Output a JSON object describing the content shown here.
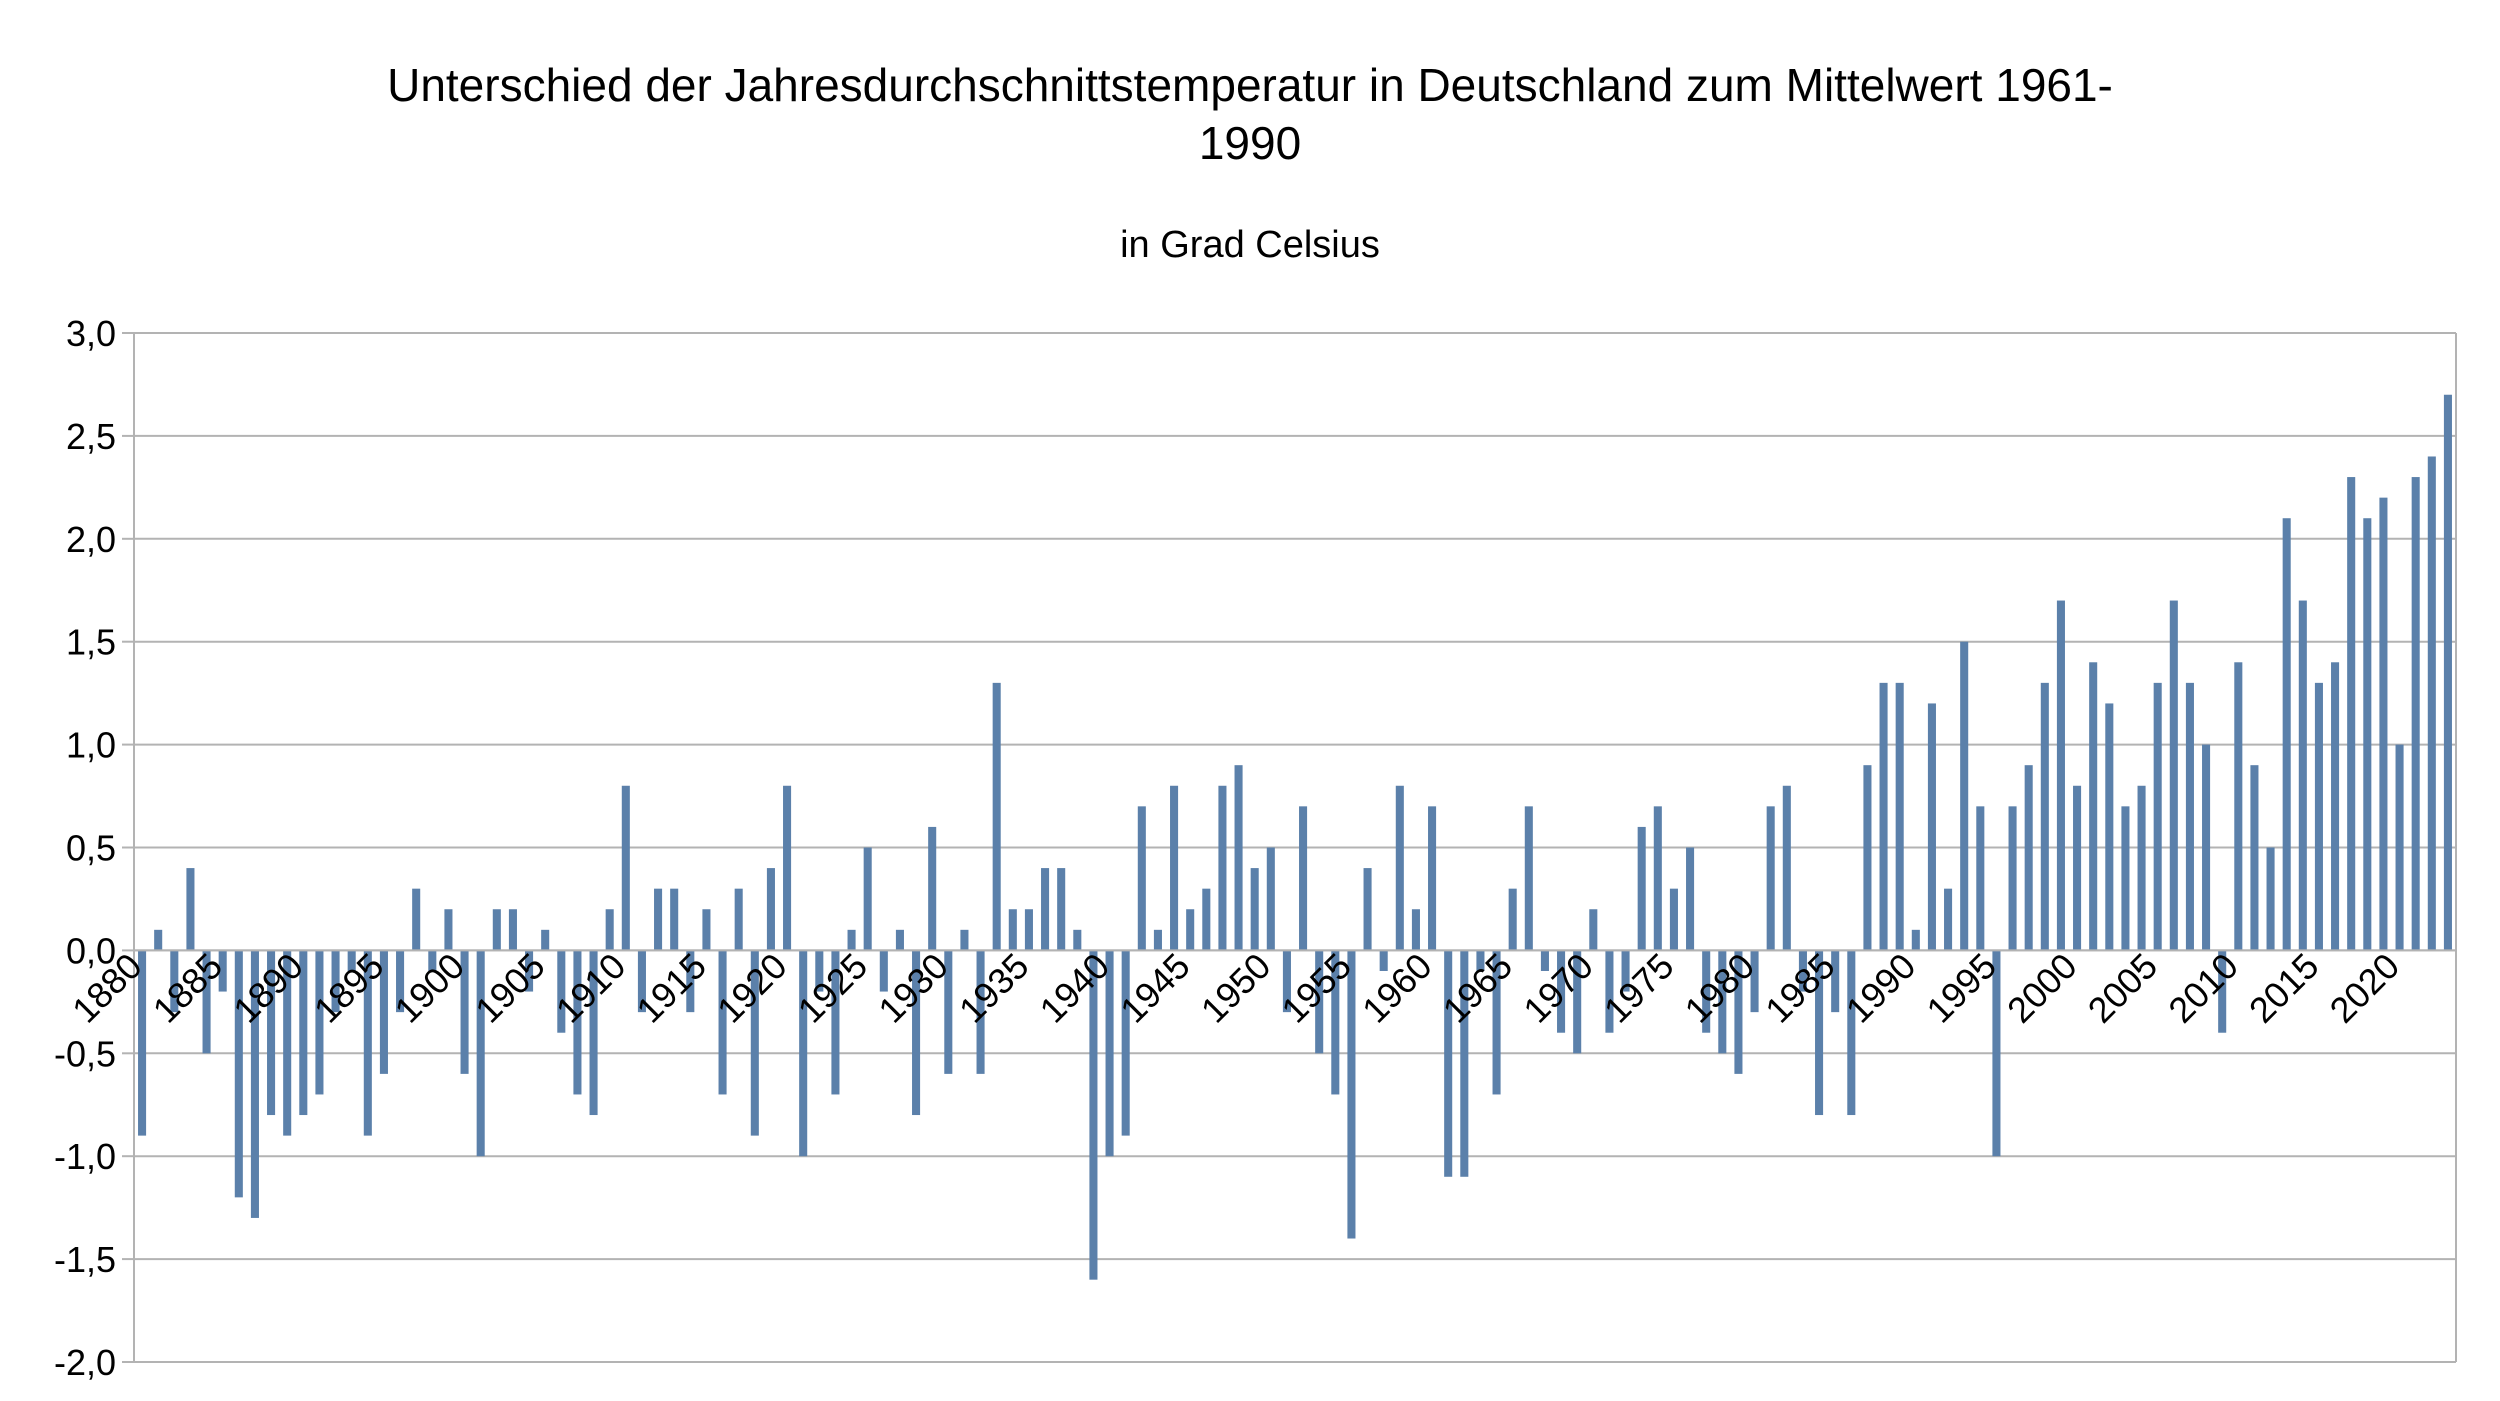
{
  "chart_data": {
    "type": "bar",
    "title_line1": "Unterschied der Jahresdurchschnittstemperatur in Deutschland zum Mittelwert 1961-",
    "title_line2": "1990",
    "subtitle": "in Grad Celsius",
    "xlabel": "",
    "ylabel": "",
    "ylim": [
      -2.0,
      3.0
    ],
    "ytick_step": 0.5,
    "ytick_decimal_separator": ",",
    "grid": true,
    "legend": "none",
    "bar_color": "#5b80aa",
    "grid_color": "#b3b3b3",
    "x_start": 1881,
    "x_label_years": [
      "1880",
      "1885",
      "1890",
      "1895",
      "1900",
      "1905",
      "1910",
      "1915",
      "1920",
      "1925",
      "1930",
      "1935",
      "1940",
      "1945",
      "1950",
      "1955",
      "1960",
      "1965",
      "1970",
      "1975",
      "1980",
      "1985",
      "1990",
      "1995",
      "2000",
      "2005",
      "2010",
      "2015",
      "2020"
    ],
    "categories": [
      1881,
      1882,
      1883,
      1884,
      1885,
      1886,
      1887,
      1888,
      1889,
      1890,
      1891,
      1892,
      1893,
      1894,
      1895,
      1896,
      1897,
      1898,
      1899,
      1900,
      1901,
      1902,
      1903,
      1904,
      1905,
      1906,
      1907,
      1908,
      1909,
      1910,
      1911,
      1912,
      1913,
      1914,
      1915,
      1916,
      1917,
      1918,
      1919,
      1920,
      1921,
      1922,
      1923,
      1924,
      1925,
      1926,
      1927,
      1928,
      1929,
      1930,
      1931,
      1932,
      1933,
      1934,
      1935,
      1936,
      1937,
      1938,
      1939,
      1940,
      1941,
      1942,
      1943,
      1944,
      1945,
      1946,
      1947,
      1948,
      1949,
      1950,
      1951,
      1952,
      1953,
      1954,
      1955,
      1956,
      1957,
      1958,
      1959,
      1960,
      1961,
      1962,
      1963,
      1964,
      1965,
      1966,
      1967,
      1968,
      1969,
      1970,
      1971,
      1972,
      1973,
      1974,
      1975,
      1976,
      1977,
      1978,
      1979,
      1980,
      1981,
      1982,
      1983,
      1984,
      1985,
      1986,
      1987,
      1988,
      1989,
      1990,
      1991,
      1992,
      1993,
      1994,
      1995,
      1996,
      1997,
      1998,
      1999,
      2000,
      2001,
      2002,
      2003,
      2004,
      2005,
      2006,
      2007,
      2008,
      2009,
      2010,
      2011,
      2012,
      2013,
      2014,
      2015,
      2016,
      2017,
      2018,
      2019,
      2020,
      2021,
      2022,
      2023,
      2024
    ],
    "values": [
      -0.9,
      0.1,
      -0.3,
      0.4,
      -0.5,
      -0.2,
      -1.2,
      -1.3,
      -0.8,
      -0.9,
      -0.8,
      -0.7,
      -0.3,
      -0.1,
      -0.9,
      -0.6,
      -0.3,
      0.3,
      -0.1,
      0.2,
      -0.6,
      -1.0,
      0.2,
      0.2,
      -0.2,
      0.1,
      -0.4,
      -0.7,
      -0.8,
      0.2,
      0.8,
      -0.3,
      0.3,
      0.3,
      -0.3,
      0.2,
      -0.7,
      0.3,
      -0.9,
      0.4,
      0.8,
      -1.0,
      -0.2,
      -0.7,
      0.1,
      0.5,
      -0.2,
      0.1,
      -0.8,
      0.6,
      -0.6,
      0.1,
      -0.6,
      1.3,
      0.2,
      0.2,
      0.4,
      0.4,
      0.1,
      -1.6,
      -1.0,
      -0.9,
      0.7,
      0.1,
      0.8,
      0.2,
      0.3,
      0.8,
      0.9,
      0.4,
      0.5,
      -0.3,
      0.7,
      -0.5,
      -0.7,
      -1.4,
      0.4,
      -0.1,
      0.8,
      0.2,
      0.7,
      -1.1,
      -1.1,
      -0.1,
      -0.7,
      0.3,
      0.7,
      -0.1,
      -0.4,
      -0.5,
      0.2,
      -0.4,
      -0.2,
      0.6,
      0.7,
      0.3,
      0.5,
      -0.4,
      -0.5,
      -0.6,
      -0.3,
      0.7,
      0.8,
      -0.2,
      -0.8,
      -0.3,
      -0.8,
      0.9,
      1.3,
      1.3,
      0.1,
      1.2,
      0.3,
      1.5,
      0.7,
      -1.0,
      0.7,
      0.9,
      1.3,
      1.7,
      0.8,
      1.4,
      1.2,
      0.7,
      0.8,
      1.3,
      1.7,
      1.3,
      1.0,
      -0.4,
      1.4,
      0.9,
      0.5,
      2.1,
      1.7,
      1.3,
      1.4,
      2.3,
      2.1,
      2.2,
      1.0,
      2.3,
      2.4,
      2.7
    ]
  }
}
